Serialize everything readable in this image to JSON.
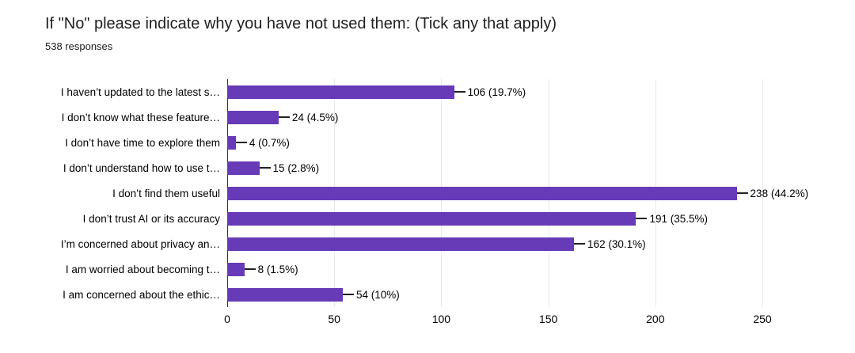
{
  "header": {
    "title": "If \"No\" please indicate why you have not used them: (Tick any that apply)",
    "subtitle": "538 responses"
  },
  "chart_data": {
    "type": "bar",
    "orientation": "horizontal",
    "title": "If \"No\" please indicate why you have not used them: (Tick any that apply)",
    "subtitle": "538 responses",
    "responses_count": 538,
    "categories": [
      "I haven’t updated to the latest s…",
      "I don’t know what these feature…",
      "I don’t have time to explore them",
      "I don’t understand how to use t…",
      "I don’t find them useful",
      "I don’t trust AI or its accuracy",
      "I’m concerned about privacy an…",
      "I am worried about becoming t…",
      "I am concerned about the ethic…"
    ],
    "values": [
      106,
      24,
      4,
      15,
      238,
      191,
      162,
      8,
      54
    ],
    "percentages": [
      19.7,
      4.5,
      0.7,
      2.8,
      44.2,
      35.5,
      30.1,
      1.5,
      10
    ],
    "value_labels": [
      "106 (19.7%)",
      "24 (4.5%)",
      "4 (0.7%)",
      "15 (2.8%)",
      "238 (44.2%)",
      "191 (35.5%)",
      "162 (30.1%)",
      "8 (1.5%)",
      "54 (10%)"
    ],
    "xlim": [
      0,
      250
    ],
    "x_ticks": [
      0,
      50,
      100,
      150,
      200,
      250
    ],
    "xlabel": "",
    "ylabel": "",
    "bar_color": "#673ab7",
    "grid": true,
    "legend_position": "none"
  }
}
